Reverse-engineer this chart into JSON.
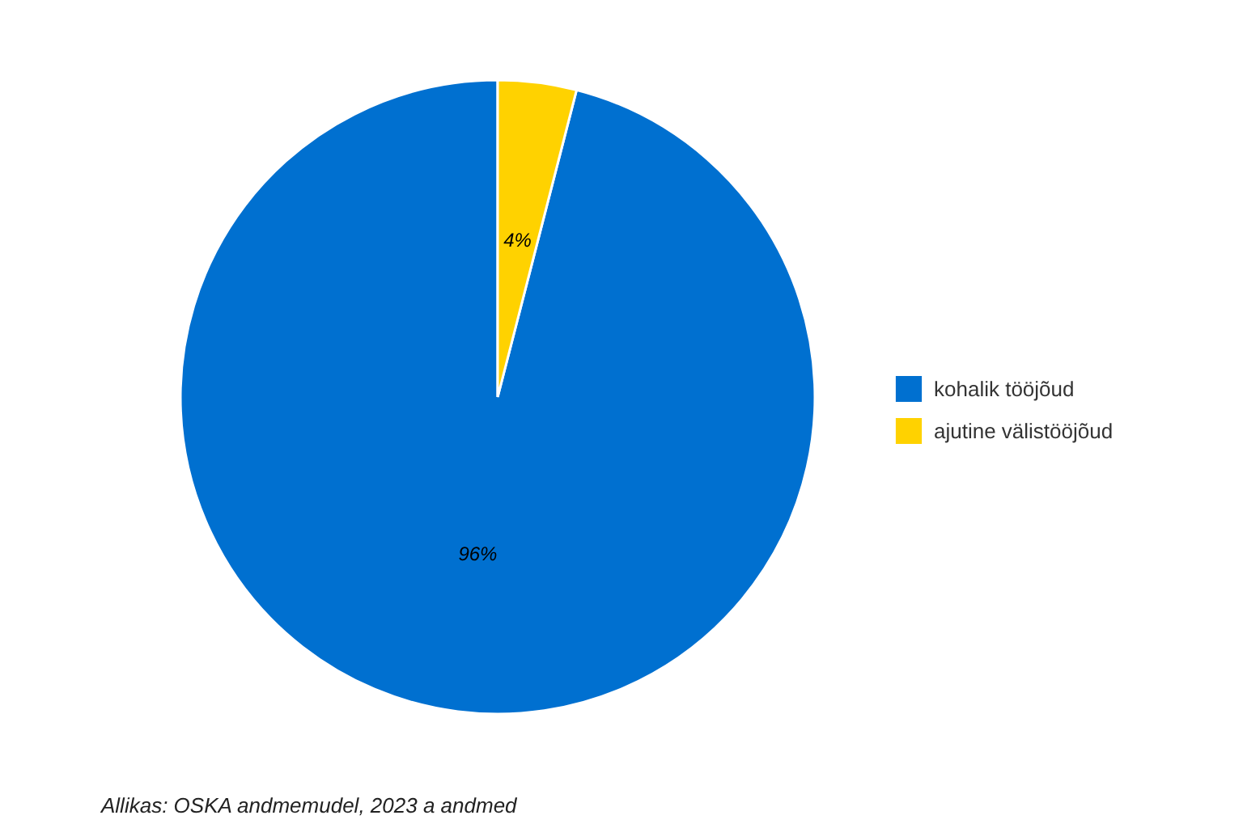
{
  "chart_data": {
    "type": "pie",
    "categories": [
      "kohalik tööjõud",
      "ajutine välistööjõud"
    ],
    "values": [
      96,
      4
    ],
    "colors": [
      "#0070d0",
      "#ffd200"
    ],
    "value_labels": [
      "96%",
      "4%"
    ],
    "legend": "right",
    "annotations": [
      "Allikas: OSKA andmemudel, 2023 a andmed"
    ]
  }
}
